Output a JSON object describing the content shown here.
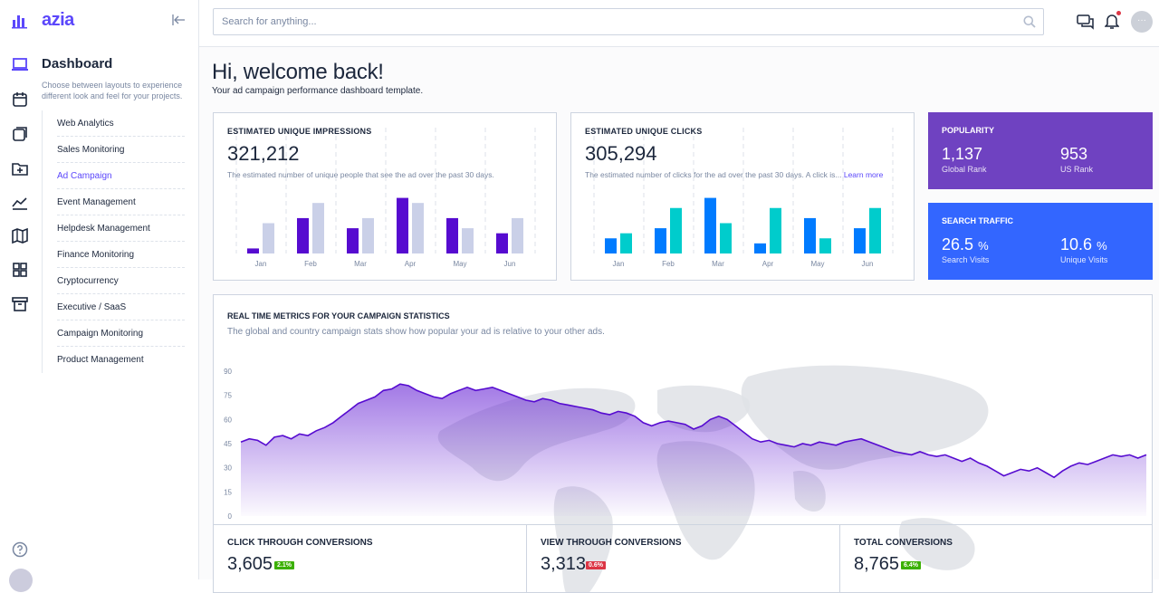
{
  "app": {
    "brand": "azia"
  },
  "header": {
    "search_placeholder": "Search for anything..."
  },
  "sidebar": {
    "title": "Dashboard",
    "description": "Choose between layouts to experience different look and feel for your projects.",
    "items": [
      {
        "label": "Web Analytics",
        "active": false
      },
      {
        "label": "Sales Monitoring",
        "active": false
      },
      {
        "label": "Ad Campaign",
        "active": true
      },
      {
        "label": "Event Management",
        "active": false
      },
      {
        "label": "Helpdesk Management",
        "active": false
      },
      {
        "label": "Finance Monitoring",
        "active": false
      },
      {
        "label": "Cryptocurrency",
        "active": false
      },
      {
        "label": "Executive / SaaS",
        "active": false
      },
      {
        "label": "Campaign Monitoring",
        "active": false
      },
      {
        "label": "Product Management",
        "active": false
      }
    ]
  },
  "welcome": {
    "title": "Hi, welcome back!",
    "subtitle": "Your ad campaign performance dashboard template."
  },
  "impressions": {
    "title": "ESTIMATED UNIQUE IMPRESSIONS",
    "value": "321,212",
    "description": "The estimated number of unique people that see the ad over the past 30 days."
  },
  "clicks": {
    "title": "ESTIMATED UNIQUE CLICKS",
    "value": "305,294",
    "description": "The estimated number of clicks for the ad over the past 30 days. A click is...",
    "learn_more": "Learn more"
  },
  "popularity": {
    "title": "POPULARITY",
    "a_value": "1,137",
    "a_label": "Global Rank",
    "b_value": "953",
    "b_label": "US Rank",
    "color": "#6f42c1"
  },
  "search_traffic": {
    "title": "SEARCH TRAFFIC",
    "a_value": "26.5",
    "a_unit": "%",
    "a_label": "Search Visits",
    "b_value": "10.6",
    "b_unit": "%",
    "b_label": "Unique Visits",
    "color": "#3366ff"
  },
  "realtime": {
    "title": "REAL TIME METRICS FOR YOUR CAMPAIGN STATISTICS",
    "subtitle": "The global and country campaign stats show how popular your ad is relative to your other ads."
  },
  "conversions": [
    {
      "title": "CLICK THROUGH CONVERSIONS",
      "value": "3,605",
      "badge": "2.1%",
      "badge_color": "#3bb001"
    },
    {
      "title": "VIEW THROUGH CONVERSIONS",
      "value": "3,313",
      "badge": "0.6%",
      "badge_color": "#dc3545"
    },
    {
      "title": "TOTAL CONVERSIONS",
      "value": "8,765",
      "badge": "6.4%",
      "badge_color": "#3bb001"
    }
  ],
  "chart_data": [
    {
      "type": "bar",
      "categories": [
        "Jan",
        "Feb",
        "Mar",
        "Apr",
        "May",
        "Jun"
      ],
      "series": [
        {
          "values": [
            1,
            7,
            5,
            11,
            7,
            4
          ],
          "color": "#560bd0"
        },
        {
          "values": [
            6,
            10,
            7,
            10,
            5,
            7
          ],
          "color": "#cad0e8"
        }
      ],
      "ylim": [
        0,
        12
      ]
    },
    {
      "type": "bar",
      "categories": [
        "Jan",
        "Feb",
        "Mar",
        "Apr",
        "May",
        "Jun"
      ],
      "series": [
        {
          "values": [
            3,
            5,
            11,
            2,
            7,
            5
          ],
          "color": "#007bff"
        },
        {
          "values": [
            4,
            9,
            6,
            9,
            3,
            9
          ],
          "color": "#00cccc"
        }
      ],
      "ylim": [
        0,
        12
      ]
    },
    {
      "type": "area",
      "yticks": [
        0,
        15,
        30,
        45,
        60,
        75,
        90
      ],
      "ylim": [
        0,
        90
      ],
      "color": "#560bd0",
      "values": [
        46,
        48,
        47,
        44,
        49,
        50,
        48,
        51,
        50,
        53,
        55,
        58,
        62,
        66,
        70,
        72,
        74,
        78,
        79,
        82,
        81,
        78,
        76,
        74,
        73,
        76,
        78,
        80,
        78,
        79,
        80,
        78,
        76,
        74,
        72,
        71,
        73,
        72,
        70,
        69,
        68,
        67,
        66,
        64,
        63,
        65,
        64,
        62,
        58,
        56,
        58,
        59,
        58,
        57,
        54,
        56,
        60,
        62,
        60,
        56,
        52,
        48,
        46,
        47,
        45,
        44,
        43,
        45,
        44,
        46,
        45,
        44,
        46,
        47,
        48,
        46,
        44,
        42,
        40,
        39,
        38,
        40,
        38,
        37,
        38,
        36,
        34,
        36,
        33,
        31,
        28,
        25,
        27,
        29,
        28,
        30,
        27,
        24,
        28,
        31,
        33,
        32,
        34,
        36,
        38,
        37,
        38,
        36,
        38
      ]
    }
  ]
}
